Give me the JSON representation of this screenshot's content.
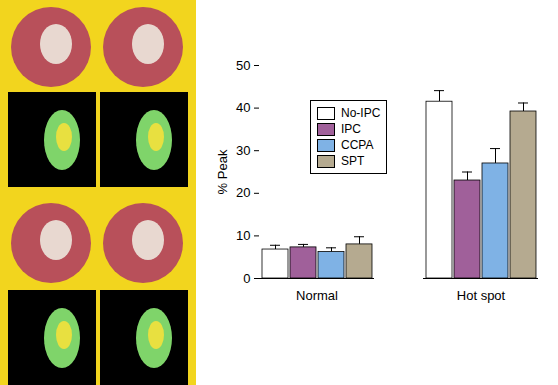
{
  "chart_data": {
    "type": "bar",
    "y_label": "% Peak",
    "categories": [
      "Normal",
      "Hot spot"
    ],
    "series": [
      {
        "name": "No-IPC",
        "color": "#ffffff",
        "values": [
          6.8,
          41.5
        ],
        "errors": [
          1.0,
          2.6
        ]
      },
      {
        "name": "IPC",
        "color": "#a0609a",
        "values": [
          7.3,
          23.0
        ],
        "errors": [
          0.7,
          2.0
        ]
      },
      {
        "name": "CCPA",
        "color": "#7fb2e5",
        "values": [
          6.2,
          27.0
        ],
        "errors": [
          1.0,
          3.5
        ]
      },
      {
        "name": "SPT",
        "color": "#b5aa90",
        "values": [
          8.0,
          39.2
        ],
        "errors": [
          1.8,
          2.0
        ]
      }
    ],
    "ylim": [
      0,
      50
    ],
    "yticks": [
      0,
      10,
      20,
      30,
      40,
      50
    ],
    "grid": false,
    "legend": "upper left"
  }
}
